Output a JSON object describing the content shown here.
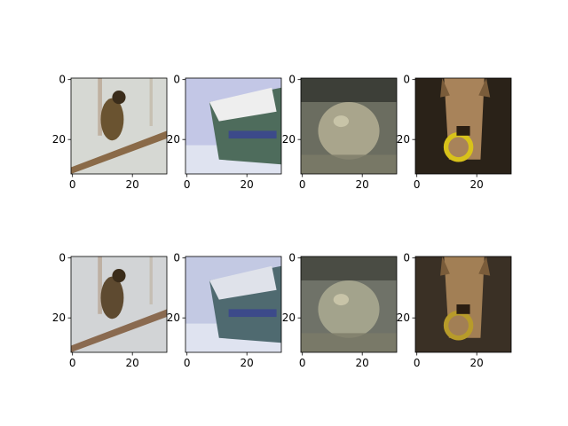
{
  "figure": {
    "background": "#ffffff",
    "grid": {
      "rows": 2,
      "cols": 4
    },
    "axes": [
      {
        "row": 0,
        "col": 0,
        "subject": "bird on branch (original)",
        "x_ticks": [
          "0",
          "20"
        ],
        "y_ticks": [
          "0",
          "20"
        ],
        "palette": {
          "bg": "#d6d8d3",
          "subject": "#6a5330",
          "accent": "#8a6a48"
        }
      },
      {
        "row": 0,
        "col": 1,
        "subject": "ship bow (original)",
        "x_ticks": [
          "0",
          "20"
        ],
        "y_ticks": [
          "0",
          "20"
        ],
        "palette": {
          "bg": "#c3c7e6",
          "subject": "#4e6c5c",
          "accent": "#eeeeee"
        }
      },
      {
        "row": 0,
        "col": 2,
        "subject": "frog on rock (original)",
        "x_ticks": [
          "0",
          "20"
        ],
        "y_ticks": [
          "0",
          "20"
        ],
        "palette": {
          "bg": "#6b6d60",
          "subject": "#a9a58c",
          "accent": "#3d3f38"
        }
      },
      {
        "row": 0,
        "col": 3,
        "subject": "dog with yellow ring (original)",
        "x_ticks": [
          "0",
          "20"
        ],
        "y_ticks": [
          "0",
          "20"
        ],
        "palette": {
          "bg": "#2a2218",
          "subject": "#a8835a",
          "accent": "#d8c21a"
        }
      },
      {
        "row": 1,
        "col": 0,
        "subject": "bird on branch (reconstruction)",
        "x_ticks": [
          "0",
          "20"
        ],
        "y_ticks": [
          "0",
          "20"
        ],
        "palette": {
          "bg": "#d2d4d6",
          "subject": "#5e4a30",
          "accent": "#8a6a50"
        }
      },
      {
        "row": 1,
        "col": 1,
        "subject": "ship bow (reconstruction)",
        "x_ticks": [
          "0",
          "20"
        ],
        "y_ticks": [
          "0",
          "20"
        ],
        "palette": {
          "bg": "#c3c9e3",
          "subject": "#4f6a70",
          "accent": "#dfe2ea"
        }
      },
      {
        "row": 1,
        "col": 2,
        "subject": "frog on rock (reconstruction)",
        "x_ticks": [
          "0",
          "20"
        ],
        "y_ticks": [
          "0",
          "20"
        ],
        "palette": {
          "bg": "#6f7268",
          "subject": "#a3a38c",
          "accent": "#4a4c44"
        }
      },
      {
        "row": 1,
        "col": 3,
        "subject": "dog (reconstruction)",
        "x_ticks": [
          "0",
          "20"
        ],
        "y_ticks": [
          "0",
          "20"
        ],
        "palette": {
          "bg": "#3a3025",
          "subject": "#a27f55",
          "accent": "#b79b2a"
        }
      }
    ]
  }
}
